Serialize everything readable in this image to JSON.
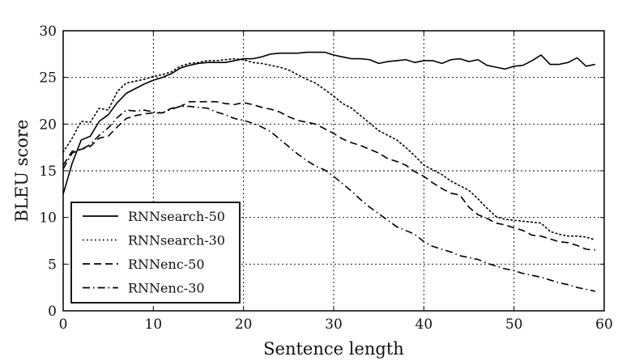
{
  "chart_data": {
    "type": "line",
    "xlabel": "Sentence length",
    "ylabel": "BLEU score",
    "xlim": [
      0,
      60
    ],
    "ylim": [
      0,
      30
    ],
    "xticks": [
      0,
      10,
      20,
      30,
      40,
      50,
      60
    ],
    "yticks": [
      0,
      5,
      10,
      15,
      20,
      25,
      30
    ],
    "grid": true,
    "legend_position": "bottom-left",
    "x": [
      0,
      1,
      2,
      3,
      4,
      5,
      6,
      7,
      8,
      9,
      10,
      11,
      12,
      13,
      14,
      15,
      16,
      17,
      18,
      19,
      20,
      21,
      22,
      23,
      24,
      25,
      26,
      27,
      28,
      29,
      30,
      31,
      32,
      33,
      34,
      35,
      36,
      37,
      38,
      39,
      40,
      41,
      42,
      43,
      44,
      45,
      46,
      47,
      48,
      49,
      50,
      51,
      52,
      53,
      54,
      55,
      56,
      57,
      58,
      59
    ],
    "series": [
      {
        "name": "RNNsearch-50",
        "style": "solid",
        "values": [
          12.5,
          15.8,
          18.3,
          18.7,
          20.3,
          21.0,
          22.3,
          23.3,
          23.8,
          24.3,
          24.7,
          25.0,
          25.4,
          26.0,
          26.3,
          26.5,
          26.6,
          26.6,
          26.6,
          26.8,
          27.0,
          27.0,
          27.2,
          27.5,
          27.6,
          27.6,
          27.6,
          27.7,
          27.7,
          27.7,
          27.4,
          27.2,
          27.0,
          27.0,
          26.9,
          26.5,
          26.7,
          26.8,
          26.9,
          26.6,
          26.8,
          26.8,
          26.5,
          26.9,
          27.0,
          26.7,
          26.9,
          26.3,
          26.1,
          25.9,
          26.2,
          26.3,
          26.8,
          27.4,
          26.4,
          26.4,
          26.6,
          27.1,
          26.2,
          26.4
        ]
      },
      {
        "name": "RNNsearch-30",
        "style": "dotted",
        "values": [
          17.0,
          18.5,
          20.3,
          20.2,
          21.7,
          21.5,
          23.5,
          24.4,
          24.6,
          24.8,
          25.1,
          25.3,
          25.6,
          26.2,
          26.5,
          26.6,
          26.8,
          26.8,
          26.9,
          27.0,
          26.9,
          26.6,
          26.5,
          26.3,
          26.1,
          25.8,
          25.3,
          24.8,
          24.4,
          23.7,
          23.0,
          22.2,
          21.7,
          20.9,
          20.1,
          19.3,
          18.8,
          18.3,
          17.5,
          16.6,
          15.6,
          15.1,
          14.6,
          13.9,
          13.4,
          12.9,
          12.0,
          11.0,
          10.1,
          9.8,
          9.7,
          9.6,
          9.5,
          9.4,
          8.5,
          8.2,
          8.0,
          8.0,
          7.9,
          7.6
        ]
      },
      {
        "name": "RNNenc-50",
        "style": "dashed",
        "values": [
          15.6,
          17.1,
          17.3,
          17.6,
          18.5,
          18.7,
          19.7,
          20.6,
          20.9,
          21.1,
          21.2,
          21.2,
          21.7,
          21.9,
          22.4,
          22.4,
          22.4,
          22.4,
          22.2,
          22.1,
          22.3,
          22.1,
          21.8,
          21.6,
          21.3,
          20.8,
          20.4,
          20.2,
          20.0,
          19.5,
          19.0,
          18.4,
          18.0,
          17.7,
          17.3,
          16.9,
          16.3,
          16.0,
          15.6,
          14.9,
          14.4,
          13.7,
          13.1,
          12.6,
          12.4,
          11.1,
          10.3,
          9.9,
          9.4,
          9.2,
          8.9,
          8.6,
          8.1,
          8.0,
          7.7,
          7.4,
          7.3,
          7.0,
          6.6,
          6.5
        ]
      },
      {
        "name": "RNNenc-30",
        "style": "dashdot",
        "values": [
          15.2,
          16.9,
          17.3,
          17.8,
          18.8,
          19.6,
          20.7,
          21.5,
          21.4,
          21.5,
          21.3,
          21.2,
          21.6,
          21.9,
          21.9,
          21.8,
          21.7,
          21.3,
          21.0,
          20.6,
          20.4,
          20.1,
          19.7,
          19.2,
          18.4,
          17.6,
          16.8,
          16.1,
          15.5,
          15.1,
          14.4,
          13.6,
          12.8,
          11.9,
          11.1,
          10.4,
          9.7,
          9.0,
          8.6,
          8.2,
          7.4,
          6.9,
          6.6,
          6.3,
          5.9,
          5.7,
          5.5,
          5.1,
          4.8,
          4.5,
          4.3,
          4.0,
          3.8,
          3.6,
          3.3,
          3.0,
          2.8,
          2.5,
          2.3,
          2.1
        ]
      }
    ]
  }
}
